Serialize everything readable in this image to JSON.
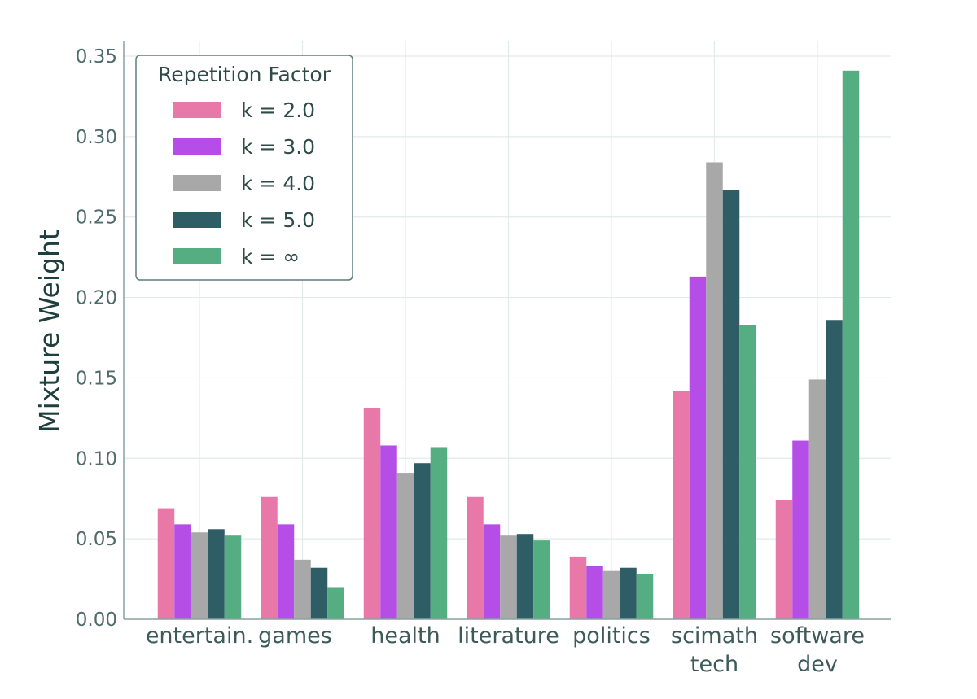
{
  "chart_data": {
    "type": "bar",
    "title": "",
    "xlabel": "",
    "ylabel": "Mixture Weight",
    "ylim": [
      0,
      0.35
    ],
    "yticks": [
      "0.00",
      "0.05",
      "0.10",
      "0.15",
      "0.20",
      "0.25",
      "0.30",
      "0.35"
    ],
    "grid": true,
    "categories": [
      [
        "entertain."
      ],
      [
        "games"
      ],
      [
        "health"
      ],
      [
        "literature"
      ],
      [
        "politics"
      ],
      [
        "scimath",
        "tech"
      ],
      [
        "software",
        "dev"
      ]
    ],
    "legend": {
      "title": "Repetition Factor",
      "placement": "top-left"
    },
    "series": [
      {
        "name": "k = 2.0",
        "color": "#e878a8",
        "values": [
          0.069,
          0.076,
          0.131,
          0.076,
          0.039,
          0.142,
          0.074
        ]
      },
      {
        "name": "k = 3.0",
        "color": "#b44ee6",
        "values": [
          0.059,
          0.059,
          0.108,
          0.059,
          0.033,
          0.213,
          0.111
        ]
      },
      {
        "name": "k = 4.0",
        "color": "#a8a8a8",
        "values": [
          0.054,
          0.037,
          0.091,
          0.052,
          0.03,
          0.284,
          0.149
        ]
      },
      {
        "name": "k = 5.0",
        "color": "#2f5d66",
        "values": [
          0.056,
          0.032,
          0.097,
          0.053,
          0.032,
          0.267,
          0.186
        ]
      },
      {
        "name": "k = ∞",
        "color": "#55ad82",
        "values": [
          0.052,
          0.02,
          0.107,
          0.049,
          0.028,
          0.183,
          0.341
        ]
      }
    ]
  }
}
